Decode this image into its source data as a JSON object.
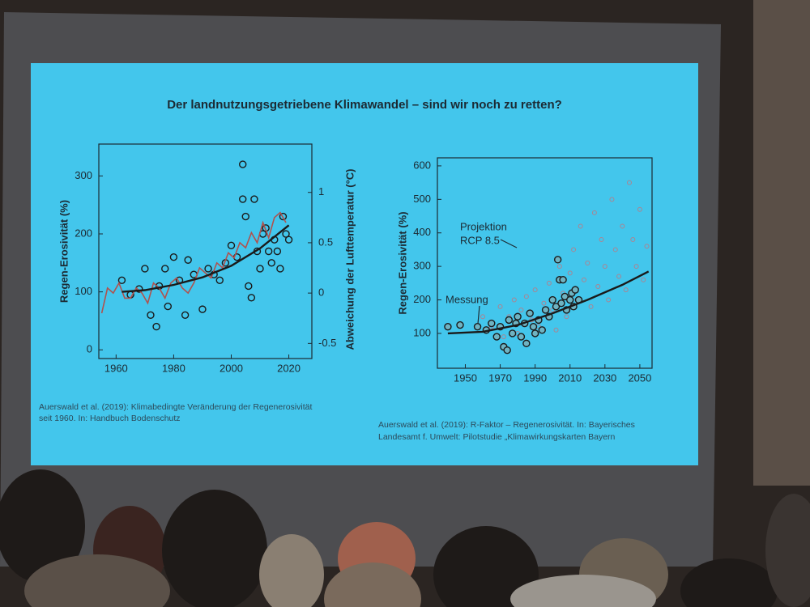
{
  "slide": {
    "title": "Der landnutzungsgetriebene Klimawandel – sind wir noch zu retten?",
    "citation_left": [
      "Auerswald et al. (2019): Klimabedingte Veränderung der Regenerosivität",
      "seit 1960. In: Handbuch Bodenschutz"
    ],
    "citation_right": [
      "Auerswald et al. (2019): R-Faktor – Regenerosivität. In: Bayerisches",
      "Landesamt f. Umwelt: Pilotstudie „Klimawirkungskarten Bayern"
    ]
  },
  "chart_data": [
    {
      "type": "scatter",
      "ylabel": "Regen-Erosivität (%)",
      "y2label": "Abweichung der Lufttemperatur (°C)",
      "xlim": [
        1954,
        2028
      ],
      "xticks": [
        1960,
        1980,
        2000,
        2020
      ],
      "ylim": [
        -15,
        355
      ],
      "yticks": [
        0,
        100,
        200,
        300
      ],
      "y2lim": [
        -0.65,
        1.48
      ],
      "y2ticks": [
        -0.5,
        0,
        0.5,
        1
      ],
      "series": [
        {
          "type": "markers",
          "color": "#1a1a1a",
          "x": [
            1962,
            1965,
            1968,
            1970,
            1972,
            1974,
            1975,
            1977,
            1978,
            1980,
            1982,
            1984,
            1985,
            1987,
            1990,
            1992,
            1994,
            1996,
            1998,
            2000,
            2002,
            2004,
            2004,
            2005,
            2006,
            2007,
            2008,
            2009,
            2010,
            2011,
            2012,
            2013,
            2014,
            2015,
            2016,
            2017,
            2018,
            2019,
            2020
          ],
          "values": [
            120,
            95,
            105,
            140,
            60,
            40,
            110,
            140,
            75,
            160,
            120,
            60,
            155,
            130,
            70,
            140,
            130,
            120,
            150,
            180,
            160,
            320,
            260,
            230,
            110,
            90,
            260,
            170,
            140,
            200,
            210,
            170,
            150,
            190,
            170,
            140,
            230,
            200,
            190
          ]
        },
        {
          "type": "line",
          "axis": "y2",
          "color": "#b0524e",
          "x": [
            1955,
            1957,
            1959,
            1961,
            1963,
            1965,
            1967,
            1969,
            1971,
            1973,
            1975,
            1977,
            1979,
            1981,
            1983,
            1985,
            1987,
            1989,
            1991,
            1993,
            1995,
            1997,
            1999,
            2001,
            2003,
            2005,
            2007,
            2009,
            2011,
            2013,
            2015,
            2017,
            2019
          ],
          "values": [
            -0.2,
            0.05,
            0.0,
            0.1,
            -0.05,
            -0.05,
            0.05,
            0.0,
            -0.1,
            0.1,
            0.05,
            -0.05,
            0.1,
            0.15,
            0.05,
            0.0,
            0.1,
            0.25,
            0.2,
            0.15,
            0.3,
            0.25,
            0.4,
            0.35,
            0.5,
            0.45,
            0.6,
            0.5,
            0.7,
            0.55,
            0.75,
            0.8,
            0.7
          ]
        },
        {
          "type": "line",
          "color": "#1a1a1a",
          "x": [
            1962,
            1970,
            1980,
            1990,
            2000,
            2010,
            2020
          ],
          "values": [
            100,
            103,
            112,
            125,
            145,
            175,
            215
          ]
        }
      ]
    },
    {
      "type": "scatter",
      "ylabel": "Regen-Erosivität (%)",
      "xlim": [
        1934,
        2057
      ],
      "xticks": [
        1950,
        1970,
        1990,
        2010,
        2030,
        2050
      ],
      "ylim": [
        -4,
        624
      ],
      "yticks": [
        100,
        200,
        300,
        400,
        500,
        600
      ],
      "annotations": [
        "Projektion",
        "RCP 8.5",
        "Messung"
      ],
      "series": [
        {
          "type": "small-markers",
          "color": "#c4737a",
          "x": [
            1960,
            1965,
            1970,
            1972,
            1975,
            1978,
            1980,
            1982,
            1985,
            1988,
            1990,
            1992,
            1995,
            1998,
            2000,
            2002,
            2004,
            2006,
            2008,
            2010,
            2012,
            2014,
            2016,
            2018,
            2020,
            2022,
            2024,
            2026,
            2028,
            2030,
            2032,
            2034,
            2036,
            2038,
            2040,
            2042,
            2044,
            2046,
            2048,
            2050,
            2052,
            2054
          ],
          "values": [
            150,
            120,
            180,
            90,
            150,
            200,
            100,
            170,
            210,
            140,
            230,
            120,
            190,
            250,
            170,
            110,
            300,
            220,
            150,
            280,
            350,
            200,
            420,
            260,
            310,
            180,
            460,
            240,
            380,
            300,
            200,
            500,
            350,
            270,
            420,
            230,
            550,
            380,
            300,
            470,
            260,
            360
          ]
        },
        {
          "type": "markers",
          "color": "#1a1a1a",
          "x": [
            1940,
            1947,
            1957,
            1962,
            1965,
            1968,
            1970,
            1972,
            1974,
            1975,
            1977,
            1979,
            1980,
            1982,
            1984,
            1985,
            1987,
            1989,
            1990,
            1992,
            1994,
            1996,
            1998,
            2000,
            2002,
            2003,
            2004,
            2005,
            2006,
            2007,
            2008,
            2010,
            2011,
            2012,
            2013,
            2015
          ],
          "values": [
            120,
            125,
            120,
            110,
            130,
            90,
            120,
            60,
            50,
            140,
            100,
            130,
            150,
            90,
            130,
            70,
            160,
            120,
            100,
            140,
            110,
            170,
            150,
            200,
            180,
            320,
            260,
            190,
            260,
            210,
            170,
            200,
            220,
            180,
            230,
            200
          ]
        },
        {
          "type": "line",
          "color": "#1a1a1a",
          "x": [
            1940,
            1960,
            1980,
            2000,
            2020,
            2040,
            2055
          ],
          "values": [
            100,
            105,
            125,
            160,
            200,
            245,
            285
          ]
        }
      ]
    }
  ]
}
